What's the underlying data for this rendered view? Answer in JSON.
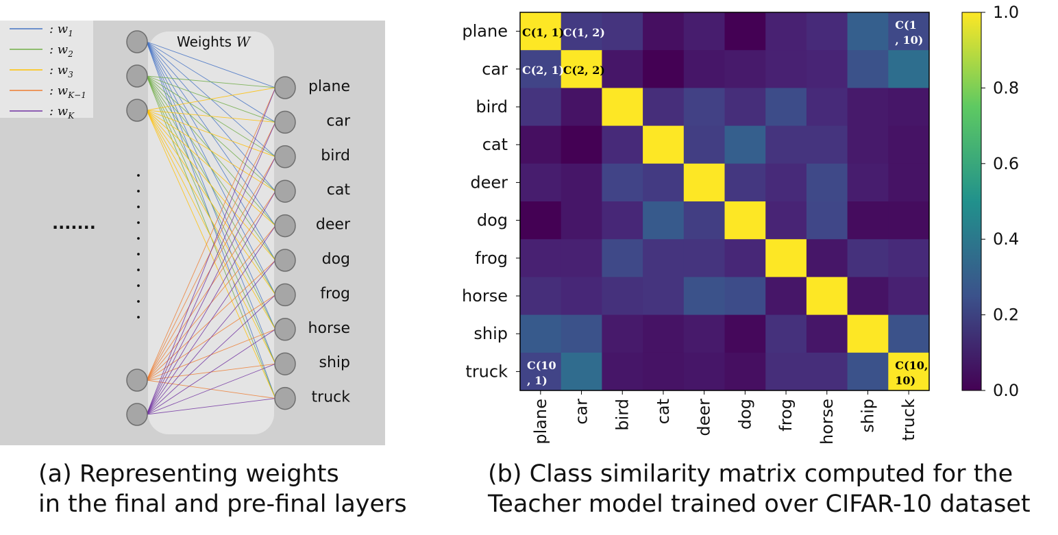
{
  "panel_a": {
    "legend": [
      {
        "label": ": w",
        "sub": "1",
        "color": "#4472c4"
      },
      {
        "label": ": w",
        "sub": "2",
        "color": "#70ad47"
      },
      {
        "label": ": w",
        "sub": "3",
        "color": "#ffc000"
      },
      {
        "label": ": w",
        "sub": "K−1",
        "color": "#ed7d31"
      },
      {
        "label": ": w",
        "sub": "K",
        "color": "#7030a0"
      }
    ],
    "weights_title": "Weights ",
    "weights_symbol": "W",
    "ellipsis": ".......",
    "classes": [
      "plane",
      "car",
      "bird",
      "cat",
      "deer",
      "dog",
      "frog",
      "horse",
      "ship",
      "truck"
    ],
    "caption_line1": "(a) Representing weights",
    "caption_line2": "in the final and pre-final layers"
  },
  "chart_data": {
    "type": "heatmap",
    "title": "",
    "rows": [
      "plane",
      "car",
      "bird",
      "cat",
      "deer",
      "dog",
      "frog",
      "horse",
      "ship",
      "truck"
    ],
    "columns": [
      "plane",
      "car",
      "bird",
      "cat",
      "deer",
      "dog",
      "frog",
      "horse",
      "ship",
      "truck"
    ],
    "values": [
      [
        1.0,
        0.17,
        0.15,
        0.04,
        0.08,
        0.0,
        0.09,
        0.12,
        0.3,
        0.22
      ],
      [
        0.2,
        1.0,
        0.06,
        0.0,
        0.06,
        0.07,
        0.09,
        0.1,
        0.25,
        0.36
      ],
      [
        0.15,
        0.05,
        1.0,
        0.13,
        0.19,
        0.13,
        0.23,
        0.12,
        0.07,
        0.06
      ],
      [
        0.04,
        0.0,
        0.12,
        1.0,
        0.18,
        0.3,
        0.15,
        0.15,
        0.07,
        0.05
      ],
      [
        0.08,
        0.06,
        0.2,
        0.17,
        1.0,
        0.16,
        0.12,
        0.22,
        0.08,
        0.05
      ],
      [
        0.0,
        0.06,
        0.11,
        0.28,
        0.18,
        1.0,
        0.1,
        0.21,
        0.03,
        0.03
      ],
      [
        0.09,
        0.09,
        0.22,
        0.15,
        0.15,
        0.11,
        1.0,
        0.06,
        0.14,
        0.12
      ],
      [
        0.13,
        0.11,
        0.14,
        0.15,
        0.25,
        0.23,
        0.06,
        1.0,
        0.05,
        0.09
      ],
      [
        0.28,
        0.25,
        0.07,
        0.05,
        0.07,
        0.02,
        0.14,
        0.06,
        1.0,
        0.25
      ],
      [
        0.2,
        0.35,
        0.06,
        0.05,
        0.06,
        0.04,
        0.13,
        0.13,
        0.25,
        1.0
      ]
    ],
    "colorbar": {
      "min": 0.0,
      "max": 1.0,
      "ticks": [
        "0.0",
        "0.2",
        "0.4",
        "0.6",
        "0.8",
        "1.0"
      ]
    },
    "annotations": [
      {
        "row": 0,
        "col": 0,
        "lines": [
          "C(1, 1)"
        ],
        "color": "#000000"
      },
      {
        "row": 0,
        "col": 1,
        "lines": [
          "C(1, 2)"
        ],
        "color": "#ffffff"
      },
      {
        "row": 0,
        "col": 9,
        "lines": [
          "C(1",
          ", 10)"
        ],
        "color": "#ffffff"
      },
      {
        "row": 1,
        "col": 0,
        "lines": [
          "C(2, 1)"
        ],
        "color": "#ffffff"
      },
      {
        "row": 1,
        "col": 1,
        "lines": [
          "C(2, 2)"
        ],
        "color": "#000000"
      },
      {
        "row": 9,
        "col": 0,
        "lines": [
          "C(10",
          ", 1)"
        ],
        "color": "#ffffff"
      },
      {
        "row": 9,
        "col": 9,
        "lines": [
          "C(10,",
          "10)"
        ],
        "color": "#000000"
      }
    ],
    "colormap": "viridis"
  },
  "panel_b": {
    "caption_line1": "(b) Class similarity matrix computed for the",
    "caption_line2": "Teacher model trained over CIFAR-10 dataset"
  }
}
